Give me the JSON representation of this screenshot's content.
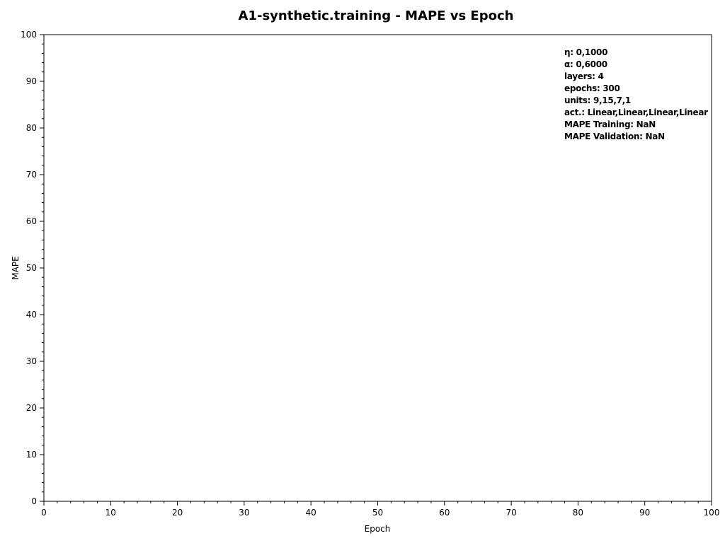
{
  "chart_data": {
    "type": "line",
    "title": "A1-synthetic.training - MAPE vs Epoch",
    "xlabel": "Epoch",
    "ylabel": "MAPE",
    "xlim": [
      0,
      100
    ],
    "ylim": [
      0,
      100
    ],
    "x_major_ticks": [
      0,
      10,
      20,
      30,
      40,
      50,
      60,
      70,
      80,
      90,
      100
    ],
    "y_major_ticks": [
      0,
      10,
      20,
      30,
      40,
      50,
      60,
      70,
      80,
      90,
      100
    ],
    "minor_tick_step": 2,
    "grid": false,
    "series": [],
    "annotation": {
      "placement": "top-right",
      "lines": [
        "η: 0,1000",
        "α: 0,6000",
        "layers: 4",
        "epochs: 300",
        "units: 9,15,7,1",
        "act.: Linear,Linear,Linear,Linear",
        "MAPE Training: NaN",
        "MAPE Validation: NaN"
      ]
    }
  }
}
